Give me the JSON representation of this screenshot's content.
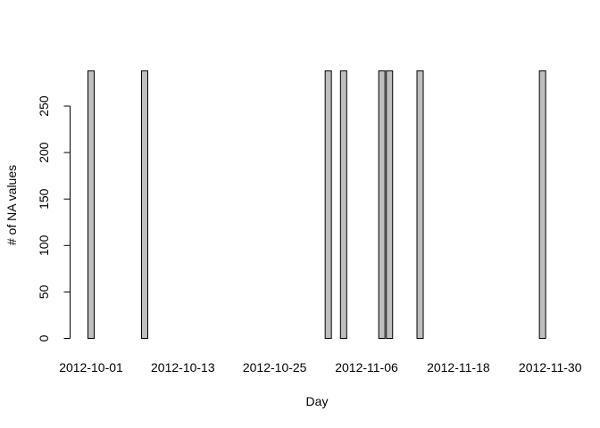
{
  "chart_data": {
    "type": "bar",
    "title": "",
    "xlabel": "Day",
    "ylabel": "# of NA values",
    "ylim": [
      0,
      288
    ],
    "yticks": [
      0,
      50,
      100,
      150,
      200,
      250
    ],
    "start_date": "2012-10-01",
    "x_tick_labels": [
      "2012-10-01",
      "2012-10-13",
      "2012-10-25",
      "2012-11-06",
      "2012-11-18",
      "2012-11-30"
    ],
    "x_tick_indices": [
      0,
      12,
      24,
      36,
      48,
      60
    ],
    "series": [
      {
        "name": "# of NA values",
        "values": [
          288,
          0,
          0,
          0,
          0,
          0,
          0,
          288,
          0,
          0,
          0,
          0,
          0,
          0,
          0,
          0,
          0,
          0,
          0,
          0,
          0,
          0,
          0,
          0,
          0,
          0,
          0,
          0,
          0,
          0,
          0,
          288,
          0,
          288,
          0,
          0,
          0,
          0,
          288,
          288,
          0,
          0,
          0,
          288,
          0,
          0,
          0,
          0,
          0,
          0,
          0,
          0,
          0,
          0,
          0,
          0,
          0,
          0,
          0,
          288
        ]
      }
    ],
    "colors": {
      "bar_fill": "#bebebe",
      "bar_stroke": "#000000"
    }
  }
}
